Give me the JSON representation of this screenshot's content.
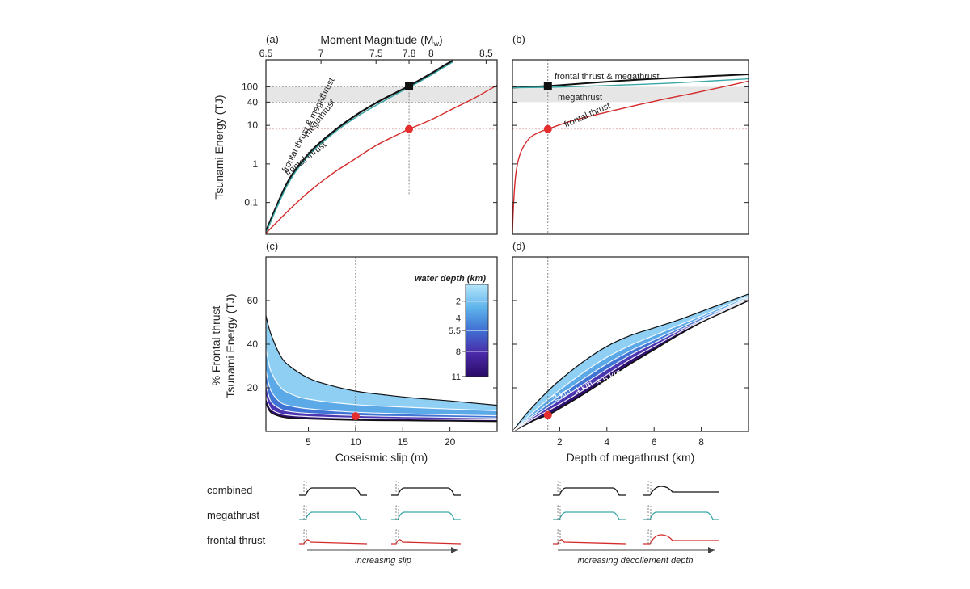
{
  "panels": {
    "a": {
      "label": "(a)",
      "top_axis_label": "Moment Magnitude (M",
      "top_axis_sub": "w",
      "top_axis_close": ")"
    },
    "b": {
      "label": "(b)"
    },
    "c": {
      "label": "(c)"
    },
    "d": {
      "label": "(d)"
    }
  },
  "sketch": {
    "rows": [
      "combined",
      "megathrust",
      "frontal thrust"
    ],
    "left_caption": "increasing slip",
    "right_caption": "increasing décollement depth"
  },
  "colors": {
    "frontal": "#d42a2a",
    "megathrust": "#3aa6a6",
    "combined": "#111111",
    "band": "#e6e6e6",
    "marker_red": "#e52f2f",
    "marker_black": "#111111"
  },
  "chart_data": [
    {
      "id": "a",
      "type": "line",
      "title": "",
      "xlabel": "",
      "ylabel": "Tsunami Energy (TJ)",
      "yscale": "log",
      "yticks": [
        "0.1",
        "1",
        "10",
        "40",
        "100"
      ],
      "ytick_values": [
        0.1,
        1,
        10,
        40,
        100
      ],
      "ylim": [
        0.015,
        500
      ],
      "xlim": [
        6.5,
        8.6
      ],
      "top_ticks": [
        "6.5",
        "7",
        "7.5",
        "7.8",
        "8",
        "8.5"
      ],
      "top_tick_values": [
        6.5,
        7.0,
        7.5,
        7.8,
        8.0,
        8.5
      ],
      "band": [
        40,
        100
      ],
      "series": [
        {
          "name": "frontal thrust & megathrust",
          "color": "#111111",
          "points": [
            [
              6.5,
              0.018
            ],
            [
              6.7,
              0.35
            ],
            [
              6.9,
              2.0
            ],
            [
              7.1,
              6.5
            ],
            [
              7.3,
              17
            ],
            [
              7.5,
              38
            ],
            [
              7.7,
              75
            ],
            [
              7.8,
              105
            ],
            [
              8.0,
              220
            ],
            [
              8.1,
              330
            ],
            [
              8.2,
              480
            ]
          ]
        },
        {
          "name": "megathrust",
          "color": "#3aa6a6",
          "points": [
            [
              6.5,
              0.016
            ],
            [
              6.7,
              0.3
            ],
            [
              6.9,
              1.8
            ],
            [
              7.1,
              5.8
            ],
            [
              7.3,
              15
            ],
            [
              7.5,
              33
            ],
            [
              7.7,
              68
            ],
            [
              7.8,
              96
            ],
            [
              8.0,
              200
            ],
            [
              8.1,
              300
            ],
            [
              8.2,
              440
            ]
          ]
        },
        {
          "name": "frontal thrust",
          "color": "#d42a2a",
          "points": [
            [
              6.5,
              0.016
            ],
            [
              6.7,
              0.06
            ],
            [
              6.9,
              0.2
            ],
            [
              7.1,
              0.55
            ],
            [
              7.3,
              1.3
            ],
            [
              7.5,
              3.0
            ],
            [
              7.7,
              5.8
            ],
            [
              7.8,
              8.0
            ],
            [
              8.0,
              14
            ],
            [
              8.2,
              27
            ],
            [
              8.4,
              52
            ],
            [
              8.6,
              110
            ]
          ]
        }
      ],
      "markers": [
        {
          "x": 7.8,
          "y": 105,
          "shape": "square"
        },
        {
          "x": 7.8,
          "y": 8,
          "shape": "circle"
        }
      ]
    },
    {
      "id": "b",
      "type": "line",
      "yscale": "log",
      "ylim": [
        0.015,
        500
      ],
      "xlim": [
        0,
        10
      ],
      "band": [
        40,
        100
      ],
      "series": [
        {
          "name": "frontal thrust & megathrust",
          "color": "#111111",
          "points": [
            [
              0,
              95
            ],
            [
              1.5,
              105
            ],
            [
              3,
              122
            ],
            [
              5,
              148
            ],
            [
              7,
              172
            ],
            [
              10,
              210
            ]
          ]
        },
        {
          "name": "megathrust",
          "color": "#3aa6a6",
          "points": [
            [
              0,
              95
            ],
            [
              1.5,
              97
            ],
            [
              3,
              103
            ],
            [
              5,
              113
            ],
            [
              7,
              127
            ],
            [
              10,
              160
            ]
          ]
        },
        {
          "name": "frontal thrust",
          "color": "#d42a2a",
          "points": [
            [
              0,
              0.016
            ],
            [
              0.05,
              0.1
            ],
            [
              0.15,
              0.6
            ],
            [
              0.35,
              2.0
            ],
            [
              0.7,
              4.5
            ],
            [
              1.1,
              6.5
            ],
            [
              1.5,
              8.0
            ],
            [
              2.5,
              13
            ],
            [
              4,
              22
            ],
            [
              6,
              42
            ],
            [
              8,
              75
            ],
            [
              10,
              140
            ]
          ]
        }
      ],
      "markers": [
        {
          "x": 1.5,
          "y": 105,
          "shape": "square"
        },
        {
          "x": 1.5,
          "y": 8,
          "shape": "circle"
        }
      ]
    },
    {
      "id": "c",
      "type": "area",
      "xlabel": "Coseismic slip (m)",
      "ylabel_line1": "% Frontal thrust",
      "ylabel_line2": "Tsunami Energy (TJ)",
      "xlim": [
        0.5,
        25
      ],
      "ylim": [
        0,
        80
      ],
      "xticks": [
        "5",
        "10",
        "15",
        "20"
      ],
      "xtick_values": [
        5,
        10,
        15,
        20
      ],
      "yticks": [
        "20",
        "40",
        "60"
      ],
      "ytick_values": [
        20,
        40,
        60
      ],
      "legend_title": "water depth (km)",
      "legend_ticks": [
        "2",
        "4",
        "5.5",
        "8",
        "11"
      ],
      "legend_values": [
        2,
        4,
        5.5,
        8,
        11
      ],
      "legend_range": [
        0,
        11
      ],
      "legend_placement": "top-right",
      "series": [
        {
          "name": "upper",
          "points": [
            [
              0.5,
              53
            ],
            [
              1,
              45
            ],
            [
              2,
              35
            ],
            [
              3,
              30
            ],
            [
              5,
              24.5
            ],
            [
              7,
              21.5
            ],
            [
              10,
              18.5
            ],
            [
              13,
              16.8
            ],
            [
              16,
              15.4
            ],
            [
              20,
              14
            ],
            [
              25,
              12
            ]
          ]
        },
        {
          "name": "2",
          "points": [
            [
              0.5,
              38
            ],
            [
              1,
              28
            ],
            [
              2,
              20.5
            ],
            [
              3,
              17.5
            ],
            [
              5,
              14.8
            ],
            [
              10,
              12.3
            ],
            [
              15,
              11.2
            ],
            [
              20,
              10.3
            ],
            [
              25,
              9.5
            ]
          ]
        },
        {
          "name": "4",
          "points": [
            [
              0.5,
              28
            ],
            [
              1,
              19
            ],
            [
              2,
              13.5
            ],
            [
              3,
              11.8
            ],
            [
              5,
              10.4
            ],
            [
              10,
              8.8
            ],
            [
              15,
              8.1
            ],
            [
              20,
              7.6
            ],
            [
              25,
              7.2
            ]
          ]
        },
        {
          "name": "5.5",
          "points": [
            [
              0.5,
              22
            ],
            [
              1,
              14
            ],
            [
              2,
              10.4
            ],
            [
              3,
              9.2
            ],
            [
              5,
              8.3
            ],
            [
              10,
              7.3
            ],
            [
              15,
              6.8
            ],
            [
              20,
              6.5
            ],
            [
              25,
              6.2
            ]
          ]
        },
        {
          "name": "8",
          "points": [
            [
              0.5,
              16
            ],
            [
              1,
              10.5
            ],
            [
              2,
              8.2
            ],
            [
              3,
              7.4
            ],
            [
              5,
              6.8
            ],
            [
              10,
              6.1
            ],
            [
              15,
              5.8
            ],
            [
              20,
              5.6
            ],
            [
              25,
              5.4
            ]
          ]
        },
        {
          "name": "lower",
          "points": [
            [
              0.5,
              13
            ],
            [
              1,
              8.8
            ],
            [
              2,
              6.9
            ],
            [
              3,
              6.2
            ],
            [
              5,
              5.8
            ],
            [
              10,
              5.2
            ],
            [
              15,
              5.0
            ],
            [
              20,
              4.8
            ],
            [
              25,
              4.6
            ]
          ]
        }
      ],
      "markers": [
        {
          "x": 10,
          "y": 7,
          "shape": "circle"
        }
      ],
      "guide_x": 10
    },
    {
      "id": "d",
      "type": "area",
      "xlabel": "Depth of megathrust (km)",
      "xlim": [
        0,
        10
      ],
      "ylim": [
        0,
        80
      ],
      "xticks": [
        "2",
        "4",
        "6",
        "8"
      ],
      "xtick_values": [
        2,
        4,
        6,
        8
      ],
      "yticks": [],
      "series": [
        {
          "name": "upper",
          "points": [
            [
              0,
              0
            ],
            [
              0.5,
              7
            ],
            [
              1,
              13
            ],
            [
              1.5,
              18.5
            ],
            [
              2,
              23.5
            ],
            [
              3,
              32
            ],
            [
              4,
              39
            ],
            [
              5,
              44
            ],
            [
              6,
              47.5
            ],
            [
              7,
              51
            ],
            [
              8,
              55
            ],
            [
              9,
              59
            ],
            [
              10,
              63
            ]
          ]
        },
        {
          "name": "2 km",
          "points": [
            [
              0,
              0
            ],
            [
              1,
              10
            ],
            [
              2,
              19
            ],
            [
              3,
              27
            ],
            [
              4,
              34
            ],
            [
              5,
              39.5
            ],
            [
              6,
              44
            ],
            [
              7,
              48.5
            ],
            [
              8,
              53
            ],
            [
              9,
              57.5
            ],
            [
              10,
              62
            ]
          ]
        },
        {
          "name": "4 km",
          "points": [
            [
              0,
              0
            ],
            [
              1,
              8.5
            ],
            [
              2,
              16.5
            ],
            [
              3,
              24
            ],
            [
              4,
              31
            ],
            [
              5,
              37
            ],
            [
              6,
              42
            ],
            [
              7,
              47
            ],
            [
              8,
              52
            ],
            [
              9,
              56.5
            ],
            [
              10,
              61.5
            ]
          ]
        },
        {
          "name": "5.5 km",
          "points": [
            [
              0,
              0
            ],
            [
              1,
              7.5
            ],
            [
              2,
              14.5
            ],
            [
              3,
              21.5
            ],
            [
              4,
              28.5
            ],
            [
              5,
              35
            ],
            [
              6,
              40.5
            ],
            [
              7,
              46
            ],
            [
              8,
              51
            ],
            [
              9,
              56
            ],
            [
              10,
              61
            ]
          ]
        },
        {
          "name": "8 km",
          "points": [
            [
              0,
              0
            ],
            [
              1,
              6.5
            ],
            [
              2,
              12.5
            ],
            [
              3,
              19
            ],
            [
              4,
              26
            ],
            [
              5,
              33
            ],
            [
              6,
              39
            ],
            [
              7,
              45
            ],
            [
              8,
              50.5
            ],
            [
              9,
              55.5
            ],
            [
              10,
              60.5
            ]
          ]
        },
        {
          "name": "lower",
          "points": [
            [
              0,
              0
            ],
            [
              1,
              5.5
            ],
            [
              1.5,
              7.5
            ],
            [
              2,
              10.5
            ],
            [
              3,
              17
            ],
            [
              4,
              24
            ],
            [
              5,
              31
            ],
            [
              6,
              37.5
            ],
            [
              7,
              44
            ],
            [
              8,
              50
            ],
            [
              9,
              55
            ],
            [
              10,
              60
            ]
          ]
        }
      ],
      "markers": [
        {
          "x": 1.5,
          "y": 7.5,
          "shape": "circle"
        }
      ],
      "guide_x": 1.5,
      "line_labels": [
        "2 km",
        "4 km",
        "5.5 km",
        "8 km"
      ]
    }
  ]
}
